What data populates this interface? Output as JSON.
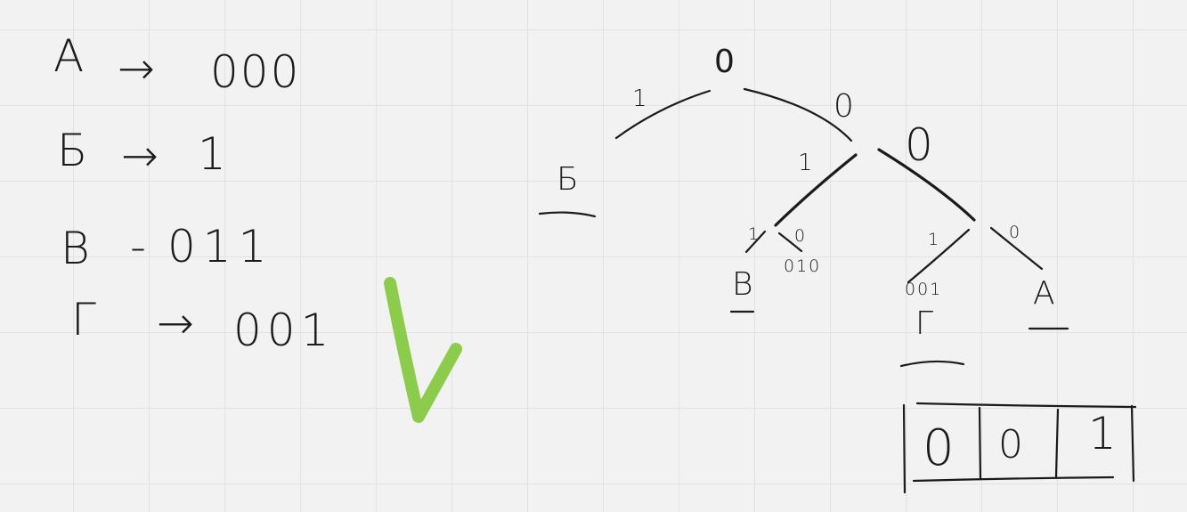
{
  "codes": [
    {
      "letter": "А",
      "arrow": "→",
      "code": "000"
    },
    {
      "letter": "Б",
      "arrow": "→",
      "code": "1"
    },
    {
      "letter": "В",
      "arrow": "-",
      "code": "011"
    },
    {
      "letter": "Г",
      "arrow": "→",
      "code": "001"
    }
  ],
  "check_color": "#8bcc4a",
  "tree": {
    "root_label": "0",
    "edge_left": "1",
    "edge_right": "0",
    "node_right": "0",
    "edge_inner_left": "1",
    "leaf_b": "Б",
    "edge_v_1": "1",
    "edge_v_0": "0",
    "leaf_v": "В",
    "code_v": "010",
    "edge_g": "1",
    "edge_a": "0",
    "leaf_g": "Г",
    "code_g": "001",
    "leaf_a": "А"
  },
  "box": [
    "0",
    "0",
    "1"
  ]
}
